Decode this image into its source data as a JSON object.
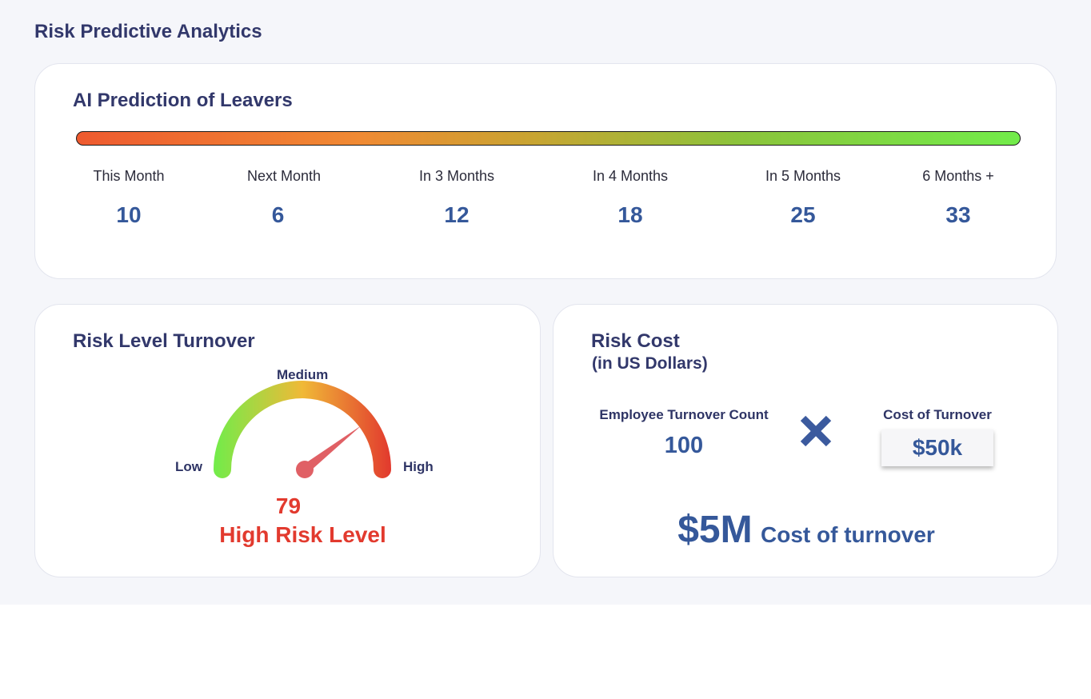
{
  "page": {
    "title": "Risk Predictive Analytics"
  },
  "leavers_card": {
    "title": "AI Prediction of Leavers",
    "gradient_colors": [
      "#ee5a2f",
      "#f08a33",
      "#c9a432",
      "#8cc33b",
      "#72ec4a"
    ],
    "periods": [
      {
        "label": "This Month",
        "value": "10"
      },
      {
        "label": "Next Month",
        "value": "6"
      },
      {
        "label": "In 3 Months",
        "value": "12"
      },
      {
        "label": "In 4 Months",
        "value": "18"
      },
      {
        "label": "In 5 Months",
        "value": "25"
      },
      {
        "label": "6 Months +",
        "value": "33"
      }
    ]
  },
  "risk_level_card": {
    "title": "Risk Level Turnover",
    "labels": {
      "low": "Low",
      "medium": "Medium",
      "high": "High"
    },
    "score": "79",
    "score_fraction": 0.79,
    "level": "High Risk Level",
    "level_color": "#e23a2e",
    "gauge_colors": [
      "#72ec4a",
      "#f0b937",
      "#e23a2e"
    ]
  },
  "risk_cost_card": {
    "title": "Risk Cost",
    "subtitle": "(in US Dollars)",
    "count_label": "Employee Turnover Count",
    "count_value": "100",
    "operator_icon": "multiply-icon",
    "unit_cost_label": "Cost of Turnover",
    "unit_cost_value": "$50k",
    "total_value": "$5M",
    "total_label": "Cost of turnover"
  }
}
